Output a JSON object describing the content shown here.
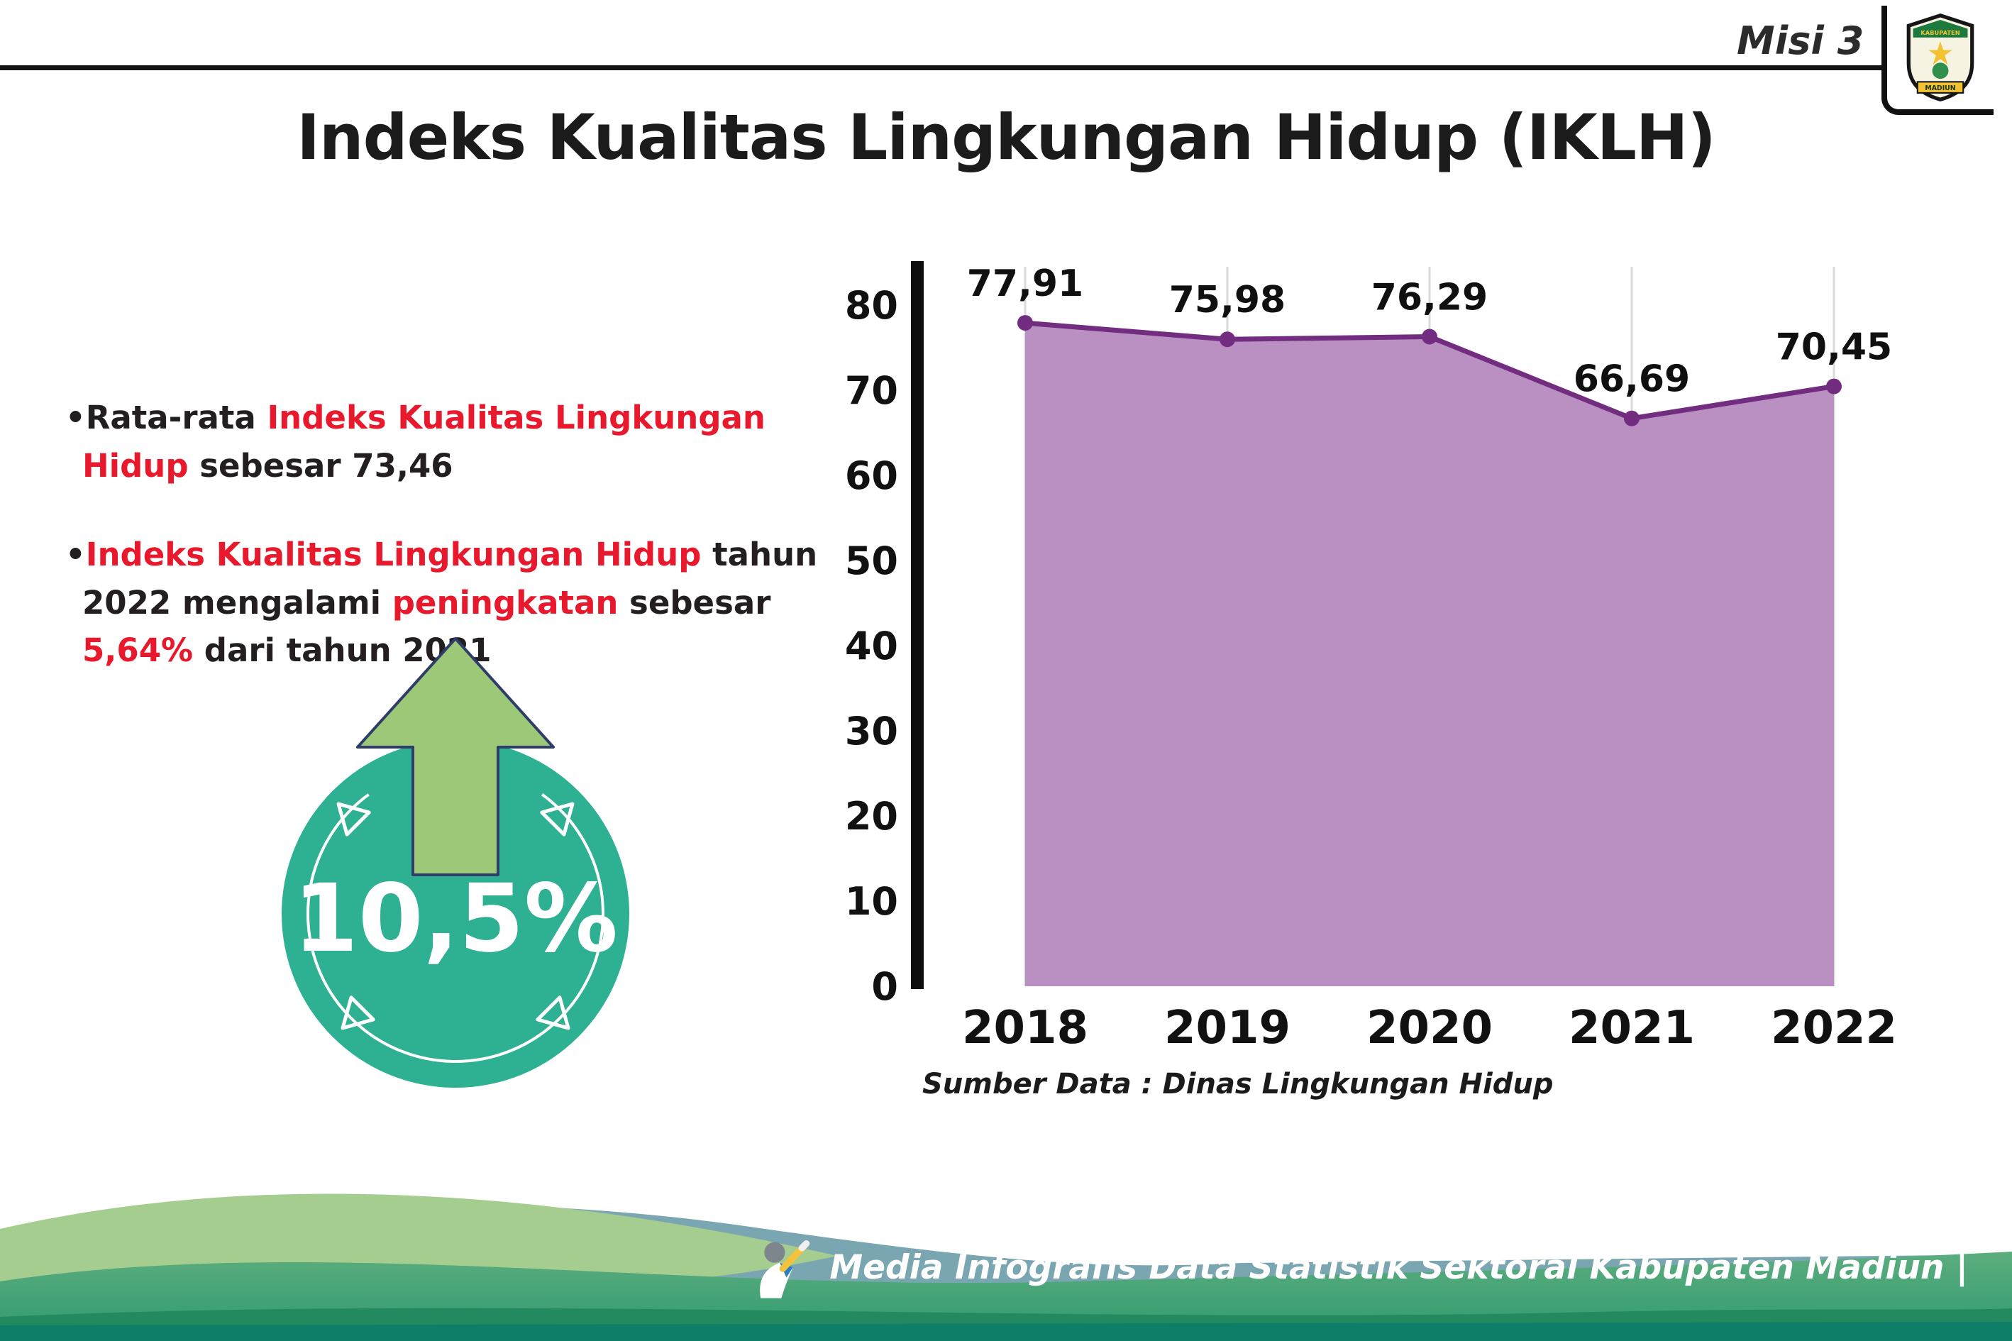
{
  "header": {
    "misi_label": "Misi 3",
    "title": "Indeks Kualitas Lingkungan Hidup (IKLH)",
    "logo_text_top": "KABUPATEN",
    "logo_text_bottom": "MADIUN"
  },
  "bullets": {
    "items": [
      {
        "segments": [
          {
            "t": "•Rata-rata ",
            "red": false
          },
          {
            "t": "Indeks Kualitas Lingkungan Hidup",
            "red": true
          },
          {
            "t": " sebesar 73,46",
            "red": false
          }
        ]
      },
      {
        "segments": [
          {
            "t": "•",
            "red": false
          },
          {
            "t": "Indeks Kualitas Lingkungan Hidup",
            "red": true
          },
          {
            "t": " tahun 2022 mengalami ",
            "red": false
          },
          {
            "t": "peningkatan",
            "red": true
          },
          {
            "t": " sebesar ",
            "red": false
          },
          {
            "t": "5,64%",
            "red": true
          },
          {
            "t": " dari tahun 2021",
            "red": false
          }
        ]
      }
    ]
  },
  "badge": {
    "value": "10,5%",
    "circle_color": "#2eb092",
    "arrow_color": "#9dc877",
    "arrow_outline": "#2e3d69"
  },
  "chart_data": {
    "type": "area",
    "title": "Indeks Kualitas Lingkungan Hidup (IKLH)",
    "categories": [
      "2018",
      "2019",
      "2020",
      "2021",
      "2022"
    ],
    "values": [
      77.91,
      75.98,
      76.29,
      66.69,
      70.45
    ],
    "value_labels": [
      "77,91",
      "75,98",
      "76,29",
      "66,69",
      "70,45"
    ],
    "ylim": [
      0,
      80
    ],
    "yticks": [
      0,
      10,
      20,
      30,
      40,
      50,
      60,
      70,
      80
    ],
    "xlabel": "",
    "ylabel": "",
    "grid": "vertical-light",
    "legend": "none",
    "line_color": "#722d80",
    "fill_color": "#ba8fc1",
    "point_color": "#722d80",
    "axis_color": "#0e0e0e",
    "label_color": "#101010"
  },
  "source_note": "Sumber Data : Dinas Lingkungan Hidup",
  "footer": {
    "credit": "Media Infografis Data Statistik Sektoral Kabupaten Madiun |"
  }
}
